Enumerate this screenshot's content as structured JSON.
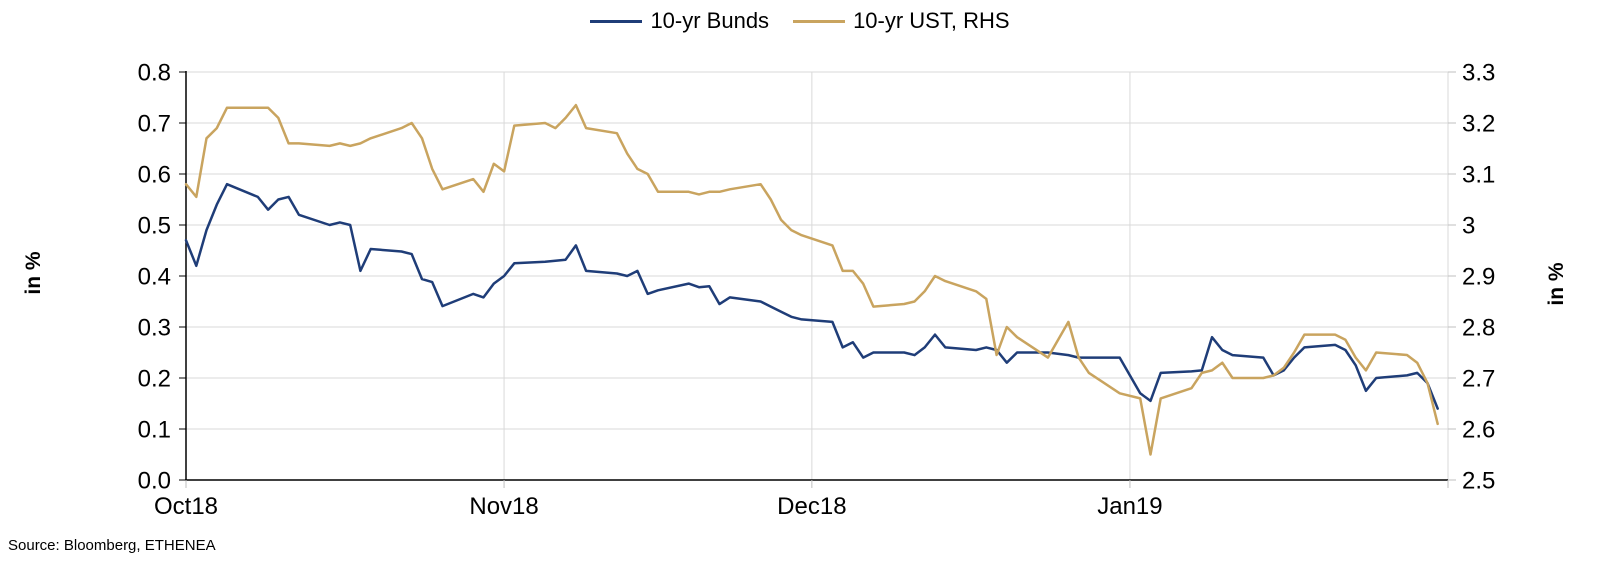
{
  "source_text": "Source: Bloomberg, ETHENEA",
  "chart_data": {
    "type": "line",
    "title": "",
    "legend_position": "top-center",
    "grid": true,
    "gridline_color": "#d9d9d9",
    "axis_color": "#000000",
    "minor_tick_color": "#bfbfbf",
    "x_domain": [
      "2018-10-01",
      "2019-02-01"
    ],
    "x_ticks": [
      {
        "label": "Oct18",
        "date": "2018-10-01"
      },
      {
        "label": "Nov18",
        "date": "2018-11-01"
      },
      {
        "label": "Dec18",
        "date": "2018-12-01"
      },
      {
        "label": "Jan19",
        "date": "2019-01-01"
      }
    ],
    "left_axis": {
      "title": "in %",
      "min": 0.0,
      "max": 0.8,
      "ticks": [
        0.0,
        0.1,
        0.2,
        0.3,
        0.4,
        0.5,
        0.6,
        0.7,
        0.8
      ],
      "tick_labels": [
        "0.0",
        "0.1",
        "0.2",
        "0.3",
        "0.4",
        "0.5",
        "0.6",
        "0.7",
        "0.8"
      ]
    },
    "right_axis": {
      "title": "in %",
      "min": 2.5,
      "max": 3.3,
      "ticks": [
        2.5,
        2.6,
        2.7,
        2.8,
        2.9,
        3.0,
        3.1,
        3.2,
        3.3
      ],
      "tick_labels": [
        "2.5",
        "2.6",
        "2.7",
        "2.8",
        "2.9",
        "3",
        "3.1",
        "3.2",
        "3.3"
      ]
    },
    "dates": [
      "2018-10-01",
      "2018-10-02",
      "2018-10-03",
      "2018-10-04",
      "2018-10-05",
      "2018-10-08",
      "2018-10-09",
      "2018-10-10",
      "2018-10-11",
      "2018-10-12",
      "2018-10-15",
      "2018-10-16",
      "2018-10-17",
      "2018-10-18",
      "2018-10-19",
      "2018-10-22",
      "2018-10-23",
      "2018-10-24",
      "2018-10-25",
      "2018-10-26",
      "2018-10-29",
      "2018-10-30",
      "2018-10-31",
      "2018-11-01",
      "2018-11-02",
      "2018-11-05",
      "2018-11-06",
      "2018-11-07",
      "2018-11-08",
      "2018-11-09",
      "2018-11-12",
      "2018-11-13",
      "2018-11-14",
      "2018-11-15",
      "2018-11-16",
      "2018-11-19",
      "2018-11-20",
      "2018-11-21",
      "2018-11-22",
      "2018-11-23",
      "2018-11-26",
      "2018-11-27",
      "2018-11-28",
      "2018-11-29",
      "2018-11-30",
      "2018-12-03",
      "2018-12-04",
      "2018-12-05",
      "2018-12-06",
      "2018-12-07",
      "2018-12-10",
      "2018-12-11",
      "2018-12-12",
      "2018-12-13",
      "2018-12-14",
      "2018-12-17",
      "2018-12-18",
      "2018-12-19",
      "2018-12-20",
      "2018-12-21",
      "2018-12-24",
      "2018-12-26",
      "2018-12-27",
      "2018-12-28",
      "2018-12-31",
      "2019-01-02",
      "2019-01-03",
      "2019-01-04",
      "2019-01-07",
      "2019-01-08",
      "2019-01-09",
      "2019-01-10",
      "2019-01-11",
      "2019-01-14",
      "2019-01-15",
      "2019-01-16",
      "2019-01-17",
      "2019-01-18",
      "2019-01-21",
      "2019-01-22",
      "2019-01-23",
      "2019-01-24",
      "2019-01-25",
      "2019-01-28",
      "2019-01-29",
      "2019-01-30",
      "2019-01-31"
    ],
    "series": [
      {
        "name": "10-yr Bunds",
        "axis": "left",
        "color": "#1f3d78",
        "values": [
          0.47,
          0.42,
          0.49,
          0.54,
          0.58,
          0.555,
          0.53,
          0.55,
          0.555,
          0.52,
          0.5,
          0.505,
          0.5,
          0.41,
          0.453,
          0.448,
          0.443,
          0.394,
          0.388,
          0.341,
          0.365,
          0.358,
          0.385,
          0.4,
          0.425,
          0.428,
          0.43,
          0.432,
          0.46,
          0.41,
          0.405,
          0.4,
          0.41,
          0.365,
          0.372,
          0.385,
          0.378,
          0.38,
          0.345,
          0.358,
          0.35,
          0.34,
          0.33,
          0.32,
          0.315,
          0.31,
          0.26,
          0.27,
          0.24,
          0.25,
          0.25,
          0.245,
          0.26,
          0.285,
          0.26,
          0.255,
          0.26,
          0.255,
          0.23,
          0.25,
          0.25,
          0.245,
          0.24,
          0.24,
          0.24,
          0.17,
          0.155,
          0.21,
          0.213,
          0.215,
          0.28,
          0.255,
          0.245,
          0.24,
          0.205,
          0.215,
          0.24,
          0.26,
          0.265,
          0.255,
          0.225,
          0.175,
          0.2,
          0.205,
          0.21,
          0.19,
          0.14
        ]
      },
      {
        "name": "10-yr UST, RHS",
        "axis": "right",
        "color": "#c9a45f",
        "values": [
          3.08,
          3.055,
          3.17,
          3.19,
          3.23,
          3.23,
          3.23,
          3.21,
          3.16,
          3.16,
          3.155,
          3.16,
          3.155,
          3.16,
          3.17,
          3.19,
          3.2,
          3.17,
          3.11,
          3.07,
          3.09,
          3.065,
          3.12,
          3.105,
          3.195,
          3.2,
          3.19,
          3.21,
          3.235,
          3.19,
          3.18,
          3.14,
          3.11,
          3.1,
          3.065,
          3.065,
          3.06,
          3.065,
          3.065,
          3.07,
          3.08,
          3.05,
          3.01,
          2.99,
          2.98,
          2.96,
          2.91,
          2.91,
          2.885,
          2.84,
          2.845,
          2.85,
          2.87,
          2.9,
          2.89,
          2.87,
          2.855,
          2.745,
          2.8,
          2.78,
          2.74,
          2.81,
          2.74,
          2.71,
          2.67,
          2.66,
          2.55,
          2.66,
          2.68,
          2.71,
          2.715,
          2.73,
          2.7,
          2.7,
          2.705,
          2.72,
          2.75,
          2.785,
          2.785,
          2.775,
          2.74,
          2.715,
          2.75,
          2.745,
          2.73,
          2.69,
          2.61
        ]
      }
    ]
  }
}
